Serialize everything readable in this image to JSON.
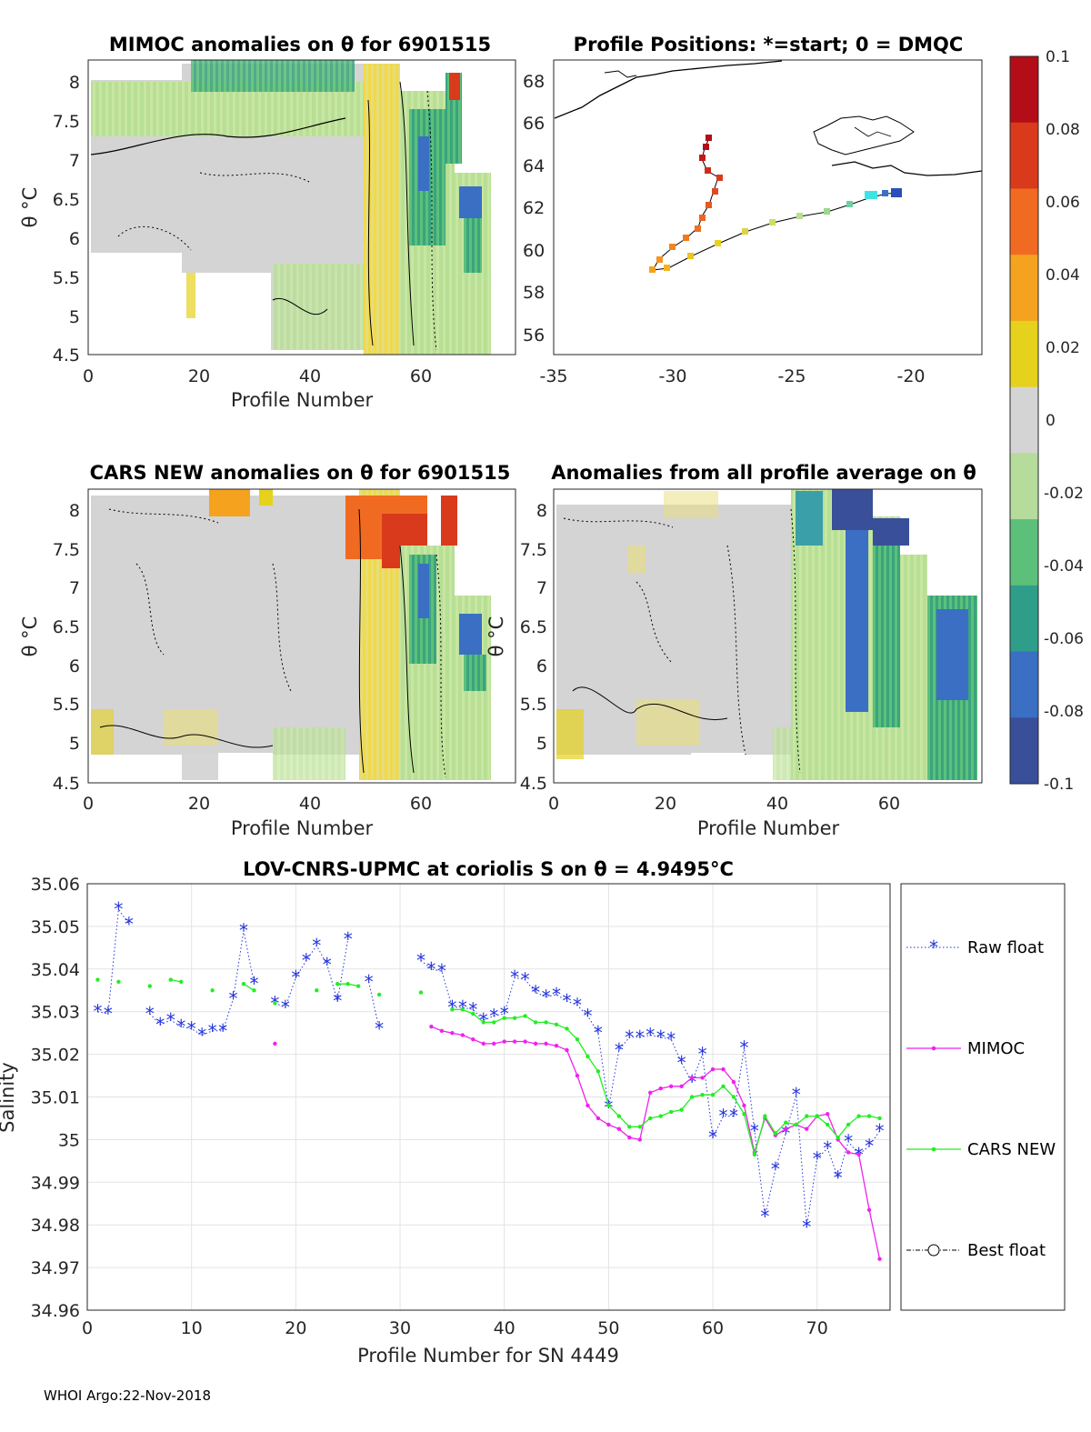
{
  "panels": {
    "mimoc": {
      "title": "MIMOC anomalies on θ  for 6901515",
      "ylabel": "θ °C",
      "xlabel": "Profile Number",
      "xticks": [
        "0",
        "20",
        "40",
        "60"
      ],
      "yticks": [
        "4.5",
        "5",
        "5.5",
        "6",
        "6.5",
        "7",
        "7.5",
        "8"
      ]
    },
    "positions": {
      "title": "Profile Positions: *=start; 0 = DMQC",
      "xticks": [
        "-35",
        "-30",
        "-25",
        "-20"
      ],
      "yticks": [
        "56",
        "58",
        "60",
        "62",
        "64",
        "66",
        "68"
      ]
    },
    "cars": {
      "title": "CARS NEW anomalies on θ for 6901515",
      "ylabel": "θ °C",
      "xlabel": "Profile Number",
      "xticks": [
        "0",
        "20",
        "40",
        "60"
      ],
      "yticks": [
        "4.5",
        "5",
        "5.5",
        "6",
        "6.5",
        "7",
        "7.5",
        "8"
      ]
    },
    "average": {
      "title": "Anomalies from all profile average on θ",
      "ylabel": "θ °C",
      "xlabel": "Profile Number",
      "xticks": [
        "0",
        "20",
        "40",
        "60"
      ],
      "yticks": [
        "4.5",
        "5",
        "5.5",
        "6",
        "6.5",
        "7",
        "7.5",
        "8"
      ]
    }
  },
  "colorbar": {
    "ticks": [
      "0.1",
      "0.08",
      "0.06",
      "0.04",
      "0.02",
      "0",
      "-0.02",
      "-0.04",
      "-0.06",
      "-0.08",
      "-0.1"
    ],
    "colors": [
      "#b30d17",
      "#d93a1c",
      "#f06b21",
      "#f5a31f",
      "#e6d11c",
      "#d4d4d4",
      "#b5dc9a",
      "#5cc07a",
      "#2e9e8a",
      "#3a6fc4",
      "#3a4f9a"
    ]
  },
  "footer": "WHOI Argo:22-Nov-2018",
  "chart_data": {
    "type": "line",
    "title": "LOV-CNRS-UPMC at coriolis S on θ = 4.9495°C",
    "xlabel": "Profile Number for SN 4449",
    "ylabel": "Salinity",
    "xlim": [
      0,
      77
    ],
    "ylim": [
      34.96,
      35.06
    ],
    "xticks": [
      "0",
      "10",
      "20",
      "30",
      "40",
      "50",
      "60",
      "70"
    ],
    "yticks": [
      "34.96",
      "34.97",
      "34.98",
      "34.99",
      "35",
      "35.01",
      "35.02",
      "35.03",
      "35.04",
      "35.05",
      "35.06"
    ],
    "legend": [
      "Raw float",
      "MIMOC",
      "CARS NEW",
      "Best float"
    ],
    "series": [
      {
        "name": "Raw float",
        "color": "#2233dd",
        "x": [
          1,
          2,
          3,
          4,
          6,
          7,
          8,
          9,
          10,
          11,
          12,
          13,
          14,
          15,
          16,
          18,
          19,
          20,
          21,
          22,
          23,
          24,
          25,
          27,
          28,
          32,
          33,
          34,
          35,
          36,
          37,
          38,
          39,
          40,
          41,
          42,
          43,
          44,
          45,
          46,
          47,
          48,
          49,
          50,
          51,
          52,
          53,
          54,
          55,
          56,
          57,
          58,
          59,
          60,
          61,
          62,
          63,
          64,
          65,
          66,
          67,
          68,
          69,
          70,
          71,
          72,
          73,
          74,
          75,
          76
        ],
        "values": [
          35.03,
          35.0295,
          35.054,
          35.0505,
          35.0295,
          35.027,
          35.028,
          35.0265,
          35.026,
          35.0245,
          35.0255,
          35.0255,
          35.033,
          35.049,
          35.0365,
          35.032,
          35.031,
          35.038,
          35.042,
          35.0455,
          35.041,
          35.0325,
          35.047,
          35.037,
          35.026,
          35.042,
          35.04,
          35.0395,
          35.031,
          35.031,
          35.0305,
          35.028,
          35.029,
          35.0295,
          35.038,
          35.0375,
          35.0345,
          35.0335,
          35.034,
          35.0325,
          35.0315,
          35.029,
          35.025,
          35.0075,
          35.021,
          35.024,
          35.024,
          35.0245,
          35.024,
          35.0235,
          35.018,
          35.0135,
          35.02,
          35.0005,
          35.0055,
          35.0055,
          35.0215,
          35.002,
          34.982,
          34.993,
          35.0015,
          35.0105,
          34.9795,
          34.9955,
          34.998,
          34.991,
          34.9995,
          34.9965,
          34.9985,
          35.002
        ]
      },
      {
        "name": "MIMOC",
        "color": "#ee22ee",
        "x": [
          18,
          33,
          34,
          35,
          36,
          37,
          38,
          39,
          40,
          41,
          42,
          43,
          44,
          45,
          46,
          47,
          48,
          49,
          50,
          51,
          52,
          53,
          54,
          55,
          56,
          57,
          58,
          59,
          60,
          61,
          62,
          63,
          64,
          65,
          66,
          67,
          68,
          69,
          70,
          71,
          72,
          73,
          74,
          75,
          76
        ],
        "values": [
          35.0225,
          35.0265,
          35.0255,
          35.025,
          35.0245,
          35.0235,
          35.0225,
          35.0225,
          35.023,
          35.023,
          35.023,
          35.0225,
          35.0225,
          35.022,
          35.021,
          35.015,
          35.008,
          35.005,
          35.0035,
          35.0025,
          35.0005,
          35.0,
          35.011,
          35.012,
          35.0125,
          35.0125,
          35.0145,
          35.0145,
          35.0165,
          35.0165,
          35.0135,
          35.008,
          34.997,
          35.005,
          35.001,
          35.0025,
          35.0035,
          35.0025,
          35.0055,
          35.006,
          35.0,
          34.997,
          34.9965,
          34.9835,
          34.972
        ]
      },
      {
        "name": "CARS NEW",
        "color": "#22ee22",
        "x": [
          1,
          3,
          6,
          8,
          9,
          12,
          15,
          16,
          18,
          22,
          24,
          25,
          26,
          28,
          32,
          35,
          36,
          37,
          38,
          39,
          40,
          41,
          42,
          43,
          44,
          45,
          46,
          47,
          48,
          49,
          50,
          51,
          52,
          53,
          54,
          55,
          56,
          57,
          58,
          59,
          60,
          61,
          62,
          63,
          64,
          65,
          66,
          67,
          68,
          69,
          70,
          71,
          72,
          73,
          74,
          75,
          76
        ],
        "values": [
          35.0375,
          35.037,
          35.036,
          35.0375,
          35.037,
          35.035,
          35.0365,
          35.035,
          35.032,
          35.035,
          35.0365,
          35.0365,
          35.036,
          35.034,
          35.0345,
          35.0305,
          35.0305,
          35.0295,
          35.0275,
          35.0275,
          35.0285,
          35.0285,
          35.029,
          35.0275,
          35.0275,
          35.027,
          35.026,
          35.0235,
          35.0195,
          35.016,
          35.008,
          35.0055,
          35.003,
          35.003,
          35.005,
          35.0055,
          35.0065,
          35.007,
          35.01,
          35.0105,
          35.0105,
          35.0125,
          35.01,
          35.006,
          34.9965,
          35.0055,
          35.0015,
          35.004,
          35.0035,
          35.0055,
          35.0055,
          35.0035,
          35.0005,
          35.0035,
          35.0055,
          35.0055,
          35.005
        ]
      }
    ]
  }
}
